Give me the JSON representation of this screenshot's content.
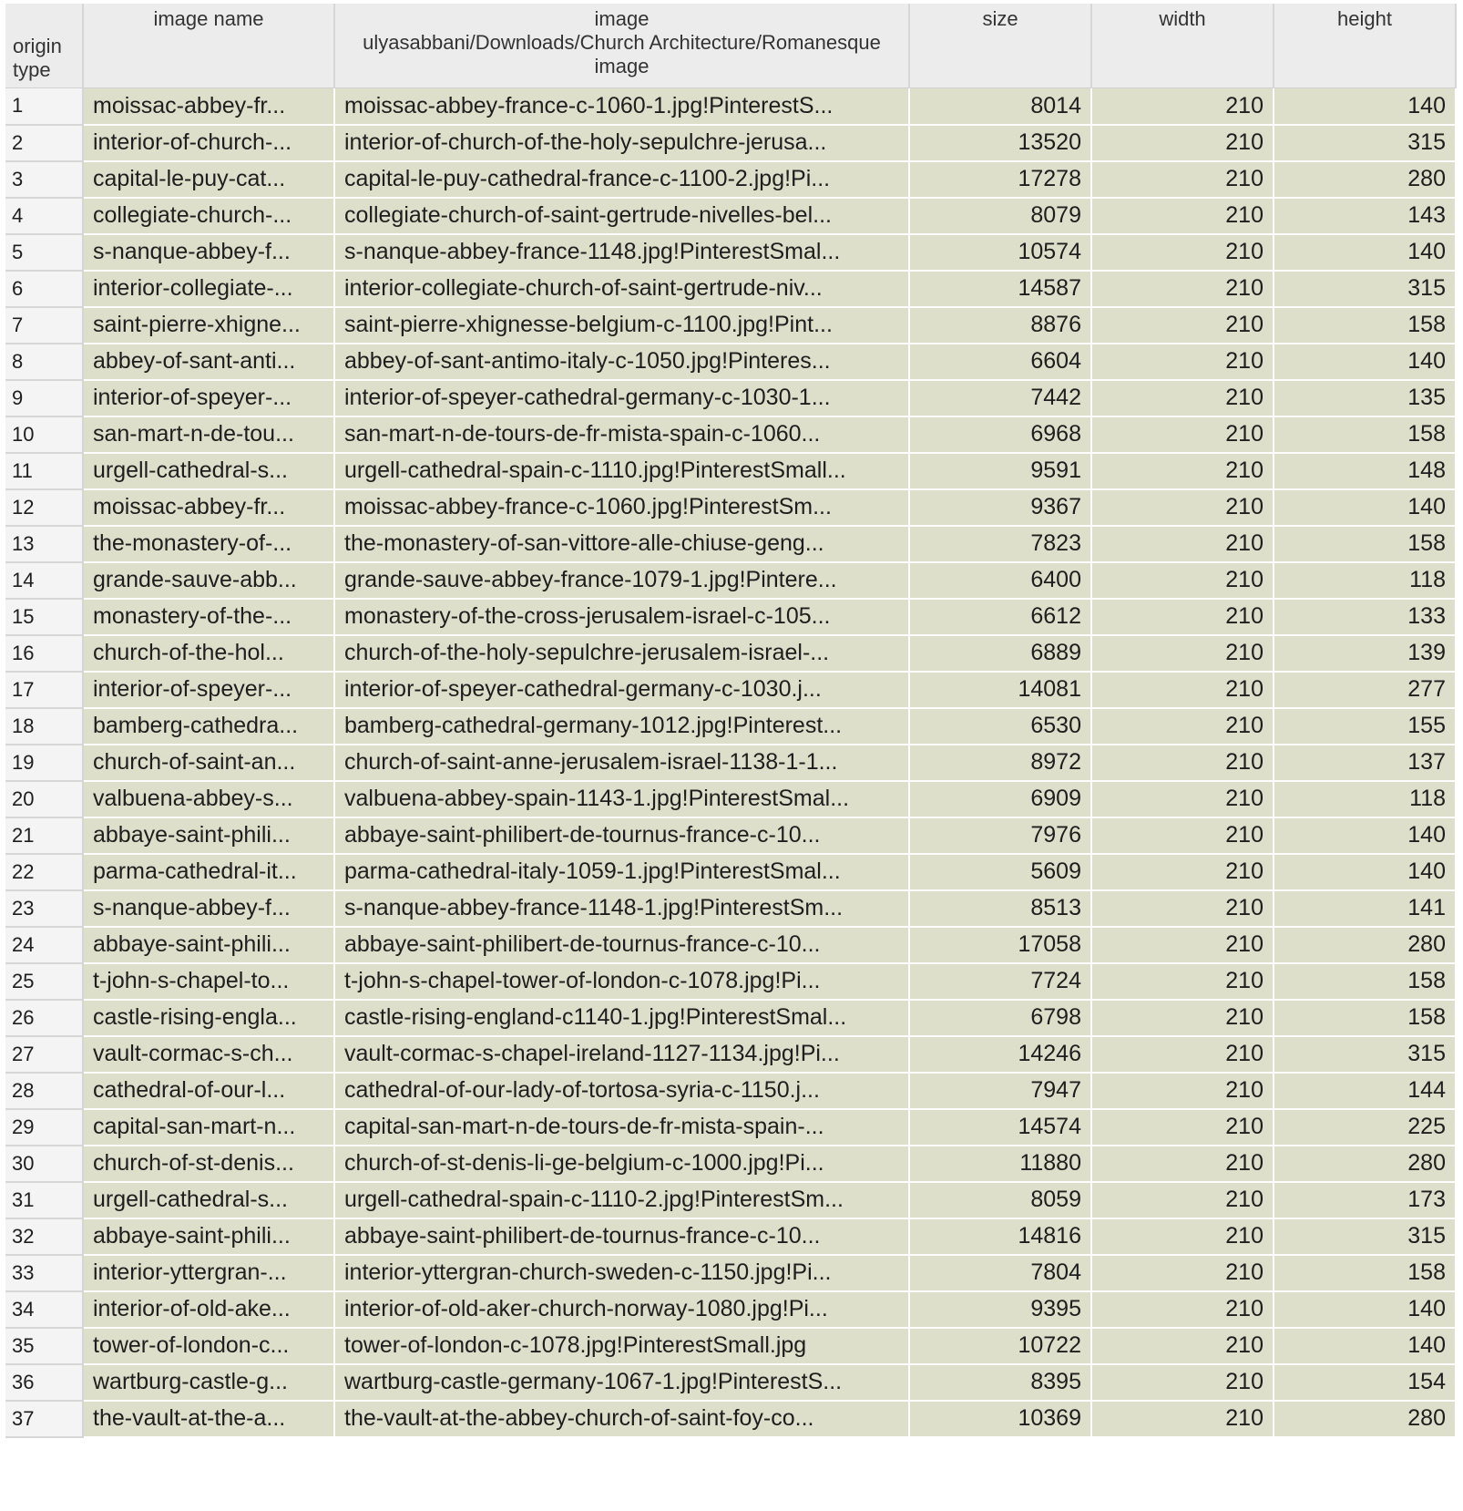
{
  "table": {
    "headers": {
      "index": [
        "origin",
        "type"
      ],
      "name": [
        "image name"
      ],
      "image": [
        "image",
        "ulyasabbani/Downloads/Church Architecture/Romanesque",
        "image"
      ],
      "size": "size",
      "width": "width",
      "height": "height"
    },
    "rows": [
      {
        "idx": "1",
        "name": "moissac-abbey-fr...",
        "image": "moissac-abbey-france-c-1060-1.jpg!PinterestS...",
        "size": "8014",
        "width": "210",
        "height": "140"
      },
      {
        "idx": "2",
        "name": "interior-of-church-...",
        "image": "interior-of-church-of-the-holy-sepulchre-jerusa...",
        "size": "13520",
        "width": "210",
        "height": "315"
      },
      {
        "idx": "3",
        "name": "capital-le-puy-cat...",
        "image": "capital-le-puy-cathedral-france-c-1100-2.jpg!Pi...",
        "size": "17278",
        "width": "210",
        "height": "280"
      },
      {
        "idx": "4",
        "name": "collegiate-church-...",
        "image": "collegiate-church-of-saint-gertrude-nivelles-bel...",
        "size": "8079",
        "width": "210",
        "height": "143"
      },
      {
        "idx": "5",
        "name": "s-nanque-abbey-f...",
        "image": "s-nanque-abbey-france-1148.jpg!PinterestSmal...",
        "size": "10574",
        "width": "210",
        "height": "140"
      },
      {
        "idx": "6",
        "name": "interior-collegiate-...",
        "image": "interior-collegiate-church-of-saint-gertrude-niv...",
        "size": "14587",
        "width": "210",
        "height": "315"
      },
      {
        "idx": "7",
        "name": "saint-pierre-xhigne...",
        "image": "saint-pierre-xhignesse-belgium-c-1100.jpg!Pint...",
        "size": "8876",
        "width": "210",
        "height": "158"
      },
      {
        "idx": "8",
        "name": "abbey-of-sant-anti...",
        "image": "abbey-of-sant-antimo-italy-c-1050.jpg!Pinteres...",
        "size": "6604",
        "width": "210",
        "height": "140"
      },
      {
        "idx": "9",
        "name": "interior-of-speyer-...",
        "image": "interior-of-speyer-cathedral-germany-c-1030-1...",
        "size": "7442",
        "width": "210",
        "height": "135"
      },
      {
        "idx": "10",
        "name": "san-mart-n-de-tou...",
        "image": "san-mart-n-de-tours-de-fr-mista-spain-c-1060...",
        "size": "6968",
        "width": "210",
        "height": "158"
      },
      {
        "idx": "11",
        "name": "urgell-cathedral-s...",
        "image": "urgell-cathedral-spain-c-1110.jpg!PinterestSmall...",
        "size": "9591",
        "width": "210",
        "height": "148"
      },
      {
        "idx": "12",
        "name": "moissac-abbey-fr...",
        "image": "moissac-abbey-france-c-1060.jpg!PinterestSm...",
        "size": "9367",
        "width": "210",
        "height": "140"
      },
      {
        "idx": "13",
        "name": "the-monastery-of-...",
        "image": "the-monastery-of-san-vittore-alle-chiuse-geng...",
        "size": "7823",
        "width": "210",
        "height": "158"
      },
      {
        "idx": "14",
        "name": "grande-sauve-abb...",
        "image": "grande-sauve-abbey-france-1079-1.jpg!Pintere...",
        "size": "6400",
        "width": "210",
        "height": "118"
      },
      {
        "idx": "15",
        "name": "monastery-of-the-...",
        "image": "monastery-of-the-cross-jerusalem-israel-c-105...",
        "size": "6612",
        "width": "210",
        "height": "133"
      },
      {
        "idx": "16",
        "name": "church-of-the-hol...",
        "image": "church-of-the-holy-sepulchre-jerusalem-israel-...",
        "size": "6889",
        "width": "210",
        "height": "139"
      },
      {
        "idx": "17",
        "name": "interior-of-speyer-...",
        "image": "interior-of-speyer-cathedral-germany-c-1030.j...",
        "size": "14081",
        "width": "210",
        "height": "277"
      },
      {
        "idx": "18",
        "name": "bamberg-cathedra...",
        "image": "bamberg-cathedral-germany-1012.jpg!Pinterest...",
        "size": "6530",
        "width": "210",
        "height": "155"
      },
      {
        "idx": "19",
        "name": "church-of-saint-an...",
        "image": "church-of-saint-anne-jerusalem-israel-1138-1-1...",
        "size": "8972",
        "width": "210",
        "height": "137"
      },
      {
        "idx": "20",
        "name": "valbuena-abbey-s...",
        "image": "valbuena-abbey-spain-1143-1.jpg!PinterestSmal...",
        "size": "6909",
        "width": "210",
        "height": "118"
      },
      {
        "idx": "21",
        "name": "abbaye-saint-phili...",
        "image": "abbaye-saint-philibert-de-tournus-france-c-10...",
        "size": "7976",
        "width": "210",
        "height": "140"
      },
      {
        "idx": "22",
        "name": "parma-cathedral-it...",
        "image": "parma-cathedral-italy-1059-1.jpg!PinterestSmal...",
        "size": "5609",
        "width": "210",
        "height": "140"
      },
      {
        "idx": "23",
        "name": "s-nanque-abbey-f...",
        "image": "s-nanque-abbey-france-1148-1.jpg!PinterestSm...",
        "size": "8513",
        "width": "210",
        "height": "141"
      },
      {
        "idx": "24",
        "name": "abbaye-saint-phili...",
        "image": "abbaye-saint-philibert-de-tournus-france-c-10...",
        "size": "17058",
        "width": "210",
        "height": "280"
      },
      {
        "idx": "25",
        "name": "t-john-s-chapel-to...",
        "image": "t-john-s-chapel-tower-of-london-c-1078.jpg!Pi...",
        "size": "7724",
        "width": "210",
        "height": "158"
      },
      {
        "idx": "26",
        "name": "castle-rising-engla...",
        "image": "castle-rising-england-c1140-1.jpg!PinterestSmal...",
        "size": "6798",
        "width": "210",
        "height": "158"
      },
      {
        "idx": "27",
        "name": "vault-cormac-s-ch...",
        "image": "vault-cormac-s-chapel-ireland-1127-1134.jpg!Pi...",
        "size": "14246",
        "width": "210",
        "height": "315"
      },
      {
        "idx": "28",
        "name": "cathedral-of-our-l...",
        "image": "cathedral-of-our-lady-of-tortosa-syria-c-1150.j...",
        "size": "7947",
        "width": "210",
        "height": "144"
      },
      {
        "idx": "29",
        "name": "capital-san-mart-n...",
        "image": "capital-san-mart-n-de-tours-de-fr-mista-spain-...",
        "size": "14574",
        "width": "210",
        "height": "225"
      },
      {
        "idx": "30",
        "name": "church-of-st-denis...",
        "image": "church-of-st-denis-li-ge-belgium-c-1000.jpg!Pi...",
        "size": "11880",
        "width": "210",
        "height": "280"
      },
      {
        "idx": "31",
        "name": "urgell-cathedral-s...",
        "image": "urgell-cathedral-spain-c-1110-2.jpg!PinterestSm...",
        "size": "8059",
        "width": "210",
        "height": "173"
      },
      {
        "idx": "32",
        "name": "abbaye-saint-phili...",
        "image": "abbaye-saint-philibert-de-tournus-france-c-10...",
        "size": "14816",
        "width": "210",
        "height": "315"
      },
      {
        "idx": "33",
        "name": "interior-yttergran-...",
        "image": "interior-yttergran-church-sweden-c-1150.jpg!Pi...",
        "size": "7804",
        "width": "210",
        "height": "158"
      },
      {
        "idx": "34",
        "name": "interior-of-old-ake...",
        "image": "interior-of-old-aker-church-norway-1080.jpg!Pi...",
        "size": "9395",
        "width": "210",
        "height": "140"
      },
      {
        "idx": "35",
        "name": "tower-of-london-c...",
        "image": "tower-of-london-c-1078.jpg!PinterestSmall.jpg",
        "size": "10722",
        "width": "210",
        "height": "140"
      },
      {
        "idx": "36",
        "name": "wartburg-castle-g...",
        "image": "wartburg-castle-germany-1067-1.jpg!PinterestS...",
        "size": "8395",
        "width": "210",
        "height": "154"
      },
      {
        "idx": "37",
        "name": "the-vault-at-the-a...",
        "image": "the-vault-at-the-abbey-church-of-saint-foy-co...",
        "size": "10369",
        "width": "210",
        "height": "280"
      }
    ]
  },
  "colors": {
    "cell_bg": "#dddfca",
    "header_bg": "#ececec",
    "index_bg": "#f4f4f4",
    "text": "#1e1e1e"
  }
}
